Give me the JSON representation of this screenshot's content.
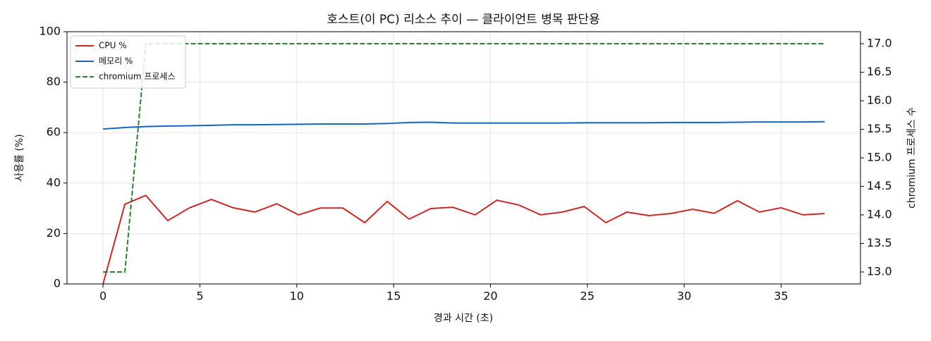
{
  "chart_data": {
    "type": "line",
    "title": "호스트(이 PC) 리소스 추이 — 클라이언트 병목 판단용",
    "xlabel": "경과 시간 (초)",
    "ylabel": "사용률 (%)",
    "y2label": "chromium 프로세스 수",
    "x": [
      0,
      1.13,
      2.21,
      3.34,
      4.47,
      5.59,
      6.72,
      7.84,
      8.97,
      10.09,
      11.22,
      12.38,
      13.51,
      14.67,
      15.8,
      16.92,
      18.05,
      19.21,
      20.33,
      21.46,
      22.59,
      23.71,
      24.84,
      25.96,
      27.05,
      28.18,
      29.3,
      30.43,
      31.55,
      32.75,
      33.88,
      35.0,
      36.13,
      37.25
    ],
    "series": [
      {
        "name": "CPU %",
        "color": "#c62828",
        "linestyle": "solid",
        "values": [
          0,
          31.6,
          35.1,
          25.1,
          30.2,
          33.5,
          30.2,
          28.5,
          31.8,
          27.4,
          30.1,
          30.1,
          24.3,
          32.7,
          25.7,
          29.9,
          30.4,
          27.4,
          33.2,
          31.3,
          27.4,
          28.5,
          30.7,
          24.3,
          28.5,
          27.1,
          27.9,
          29.6,
          28.0,
          33.0,
          28.5,
          30.2,
          27.4,
          27.9
        ]
      },
      {
        "name": "메모리 %",
        "color": "#1565c0",
        "linestyle": "solid",
        "values": [
          61.4,
          62.0,
          62.4,
          62.6,
          62.7,
          62.9,
          63.1,
          63.1,
          63.2,
          63.3,
          63.4,
          63.4,
          63.4,
          63.6,
          64.0,
          64.1,
          63.8,
          63.8,
          63.8,
          63.8,
          63.8,
          63.8,
          63.9,
          63.9,
          63.9,
          63.9,
          64.0,
          64.0,
          64.0,
          64.1,
          64.2,
          64.2,
          64.2,
          64.3
        ]
      },
      {
        "name": "chromium 프로세스",
        "color": "#2e7d32",
        "linestyle": "dashed",
        "axis": "y2",
        "values": [
          13,
          13,
          17,
          17,
          17,
          17,
          17,
          17,
          17,
          17,
          17,
          17,
          17,
          17,
          17,
          17,
          17,
          17,
          17,
          17,
          17,
          17,
          17,
          17,
          17,
          17,
          17,
          17,
          17,
          17,
          17,
          17,
          17,
          17
        ]
      }
    ],
    "xlim": [
      -1.86,
      39.1
    ],
    "xticks": [
      0,
      5,
      10,
      15,
      20,
      25,
      30,
      35
    ],
    "ylim": [
      0,
      100
    ],
    "yticks": [
      0,
      20,
      40,
      60,
      80,
      100
    ],
    "y2lim": [
      12.79,
      17.21
    ],
    "y2ticks": [
      {
        "value": 13,
        "label": "13.0"
      },
      {
        "value": 13.5,
        "label": "13.5"
      },
      {
        "value": 14,
        "label": "14.0"
      },
      {
        "value": 14.5,
        "label": "14.5"
      },
      {
        "value": 15,
        "label": "15.0"
      },
      {
        "value": 15.5,
        "label": "15.5"
      },
      {
        "value": 16,
        "label": "16.0"
      },
      {
        "value": 16.5,
        "label": "16.5"
      },
      {
        "value": 17,
        "label": "17.0"
      }
    ],
    "grid": true,
    "legend": "upper-left"
  }
}
